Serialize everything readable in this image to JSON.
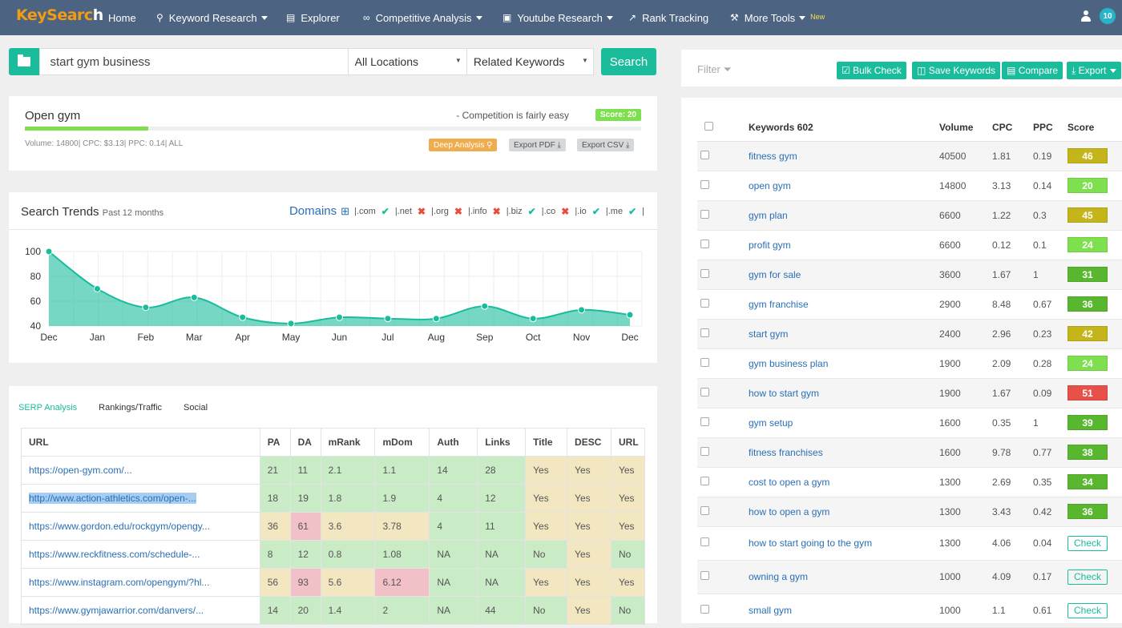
{
  "nav": {
    "logo_a": "KeySearc",
    "logo_b": "h",
    "items": [
      "Home",
      "Keyword Research",
      "Explorer",
      "Competitive Analysis",
      "Youtube Research",
      "Rank Tracking",
      "More Tools"
    ],
    "new_tag": "New",
    "notif_count": "10"
  },
  "search": {
    "query": "start gym business",
    "location": "All Locations",
    "mode": "Related Keywords",
    "button": "Search"
  },
  "keyword_card": {
    "title": "Open gym",
    "competition": "- Competition is fairly easy",
    "score": "Score: 20",
    "score_value": 20,
    "metrics": "Volume: 14800| CPC: $3.13| PPC: 0.14| ALL",
    "deep": "Deep Analysis",
    "pdf": "Export PDF",
    "csv": "Export CSV"
  },
  "trends": {
    "title": "Search Trends",
    "subtitle": "Past 12 months",
    "domains_label": "Domains",
    "domains": [
      {
        "name": "|.com",
        "ok": true
      },
      {
        "name": "|.net",
        "ok": false
      },
      {
        "name": "|.org",
        "ok": false
      },
      {
        "name": "|.info",
        "ok": false
      },
      {
        "name": "|.biz",
        "ok": true
      },
      {
        "name": "|.co",
        "ok": false
      },
      {
        "name": "|.io",
        "ok": true
      },
      {
        "name": "|.me",
        "ok": true
      }
    ],
    "tail": "|"
  },
  "chart_data": {
    "type": "area",
    "categories": [
      "Dec",
      "Jan",
      "Feb",
      "Mar",
      "Apr",
      "May",
      "Jun",
      "Jul",
      "Aug",
      "Sep",
      "Oct",
      "Nov",
      "Dec"
    ],
    "values": [
      100,
      70,
      55,
      63,
      47,
      42,
      47,
      46,
      46,
      56,
      46,
      53,
      49
    ],
    "yticks": [
      100,
      80,
      60,
      40
    ],
    "ylim": [
      40,
      100
    ],
    "color": "#1abc9c",
    "grid": true
  },
  "serp": {
    "tabs": [
      "SERP Analysis",
      "Rankings/Traffic",
      "Social"
    ],
    "headers": [
      "URL",
      "PA",
      "DA",
      "mRank",
      "mDom",
      "Auth",
      "Links",
      "Title",
      "DESC",
      "URL"
    ],
    "rows": [
      {
        "url": "https://open-gym.com/...",
        "cells": [
          "21",
          "11",
          "2.1",
          "1.1",
          "14",
          "28",
          "Yes",
          "Yes",
          "Yes"
        ],
        "cls": [
          "g",
          "g",
          "g",
          "g",
          "g",
          "g",
          "y",
          "y",
          "y"
        ]
      },
      {
        "url": "http://www.action-athletics.com/open-...",
        "cells": [
          "18",
          "19",
          "1.8",
          "1.9",
          "4",
          "12",
          "Yes",
          "Yes",
          "Yes"
        ],
        "cls": [
          "g",
          "g",
          "g",
          "g",
          "g",
          "g",
          "y",
          "y",
          "y"
        ],
        "hl": true
      },
      {
        "url": "https://www.gordon.edu/rockgym/opengy...",
        "cells": [
          "36",
          "61",
          "3.6",
          "3.78",
          "4",
          "11",
          "Yes",
          "Yes",
          "Yes"
        ],
        "cls": [
          "y",
          "r",
          "y",
          "y",
          "g",
          "g",
          "y",
          "y",
          "y"
        ]
      },
      {
        "url": "https://www.reckfitness.com/schedule-...",
        "cells": [
          "8",
          "12",
          "0.8",
          "1.08",
          "NA",
          "NA",
          "No",
          "Yes",
          "No"
        ],
        "cls": [
          "g",
          "g",
          "g",
          "g",
          "g",
          "g",
          "g",
          "y",
          "g"
        ]
      },
      {
        "url": "https://www.instagram.com/opengym/?hl...",
        "cells": [
          "56",
          "93",
          "5.6",
          "6.12",
          "NA",
          "NA",
          "Yes",
          "Yes",
          "Yes"
        ],
        "cls": [
          "y",
          "r",
          "y",
          "r",
          "g",
          "g",
          "y",
          "y",
          "y"
        ]
      },
      {
        "url": "https://www.gymjawarrior.com/danvers/...",
        "cells": [
          "14",
          "20",
          "1.4",
          "2",
          "NA",
          "44",
          "No",
          "Yes",
          "No"
        ],
        "cls": [
          "g",
          "g",
          "g",
          "g",
          "g",
          "g",
          "g",
          "y",
          "g"
        ]
      }
    ]
  },
  "toolbar": {
    "filter": "Filter",
    "bulk": "Bulk Check",
    "save": "Save Keywords",
    "compare": "Compare",
    "export": "Export"
  },
  "keywords": {
    "headers": [
      "Keywords 602",
      "Volume",
      "CPC",
      "PPC",
      "Score"
    ],
    "check_label": "Check",
    "rows": [
      {
        "kw": "fitness gym",
        "vol": "40500",
        "cpc": "1.81",
        "ppc": "0.19",
        "score": "46",
        "color": "#c4b51a"
      },
      {
        "kw": "open gym",
        "vol": "14800",
        "cpc": "3.13",
        "ppc": "0.14",
        "score": "20",
        "color": "#7ee04e"
      },
      {
        "kw": "gym plan",
        "vol": "6600",
        "cpc": "1.22",
        "ppc": "0.3",
        "score": "45",
        "color": "#c4b51a"
      },
      {
        "kw": "profit gym",
        "vol": "6600",
        "cpc": "0.12",
        "ppc": "0.1",
        "score": "24",
        "color": "#7ee04e"
      },
      {
        "kw": "gym for sale",
        "vol": "3600",
        "cpc": "1.67",
        "ppc": "1",
        "score": "31",
        "color": "#58b72e"
      },
      {
        "kw": "gym franchise",
        "vol": "2900",
        "cpc": "8.48",
        "ppc": "0.67",
        "score": "36",
        "color": "#58b72e"
      },
      {
        "kw": "start gym",
        "vol": "2400",
        "cpc": "2.96",
        "ppc": "0.23",
        "score": "42",
        "color": "#c4b51a"
      },
      {
        "kw": "gym business plan",
        "vol": "1900",
        "cpc": "2.09",
        "ppc": "0.28",
        "score": "24",
        "color": "#7ee04e"
      },
      {
        "kw": "how to start gym",
        "vol": "1900",
        "cpc": "1.67",
        "ppc": "0.09",
        "score": "51",
        "color": "#e8504a"
      },
      {
        "kw": "gym setup",
        "vol": "1600",
        "cpc": "0.35",
        "ppc": "1",
        "score": "39",
        "color": "#58b72e"
      },
      {
        "kw": "fitness franchises",
        "vol": "1600",
        "cpc": "9.78",
        "ppc": "0.77",
        "score": "38",
        "color": "#58b72e"
      },
      {
        "kw": "cost to open a gym",
        "vol": "1300",
        "cpc": "2.69",
        "ppc": "0.35",
        "score": "34",
        "color": "#58b72e"
      },
      {
        "kw": "how to open a gym",
        "vol": "1300",
        "cpc": "3.43",
        "ppc": "0.42",
        "score": "36",
        "color": "#58b72e"
      },
      {
        "kw": "how to start going to the gym",
        "vol": "1300",
        "cpc": "4.06",
        "ppc": "0.04",
        "score": "",
        "color": ""
      },
      {
        "kw": "owning a gym",
        "vol": "1000",
        "cpc": "4.09",
        "ppc": "0.17",
        "score": "",
        "color": ""
      },
      {
        "kw": "small gym",
        "vol": "1000",
        "cpc": "1.1",
        "ppc": "0.61",
        "score": "",
        "color": ""
      }
    ]
  }
}
